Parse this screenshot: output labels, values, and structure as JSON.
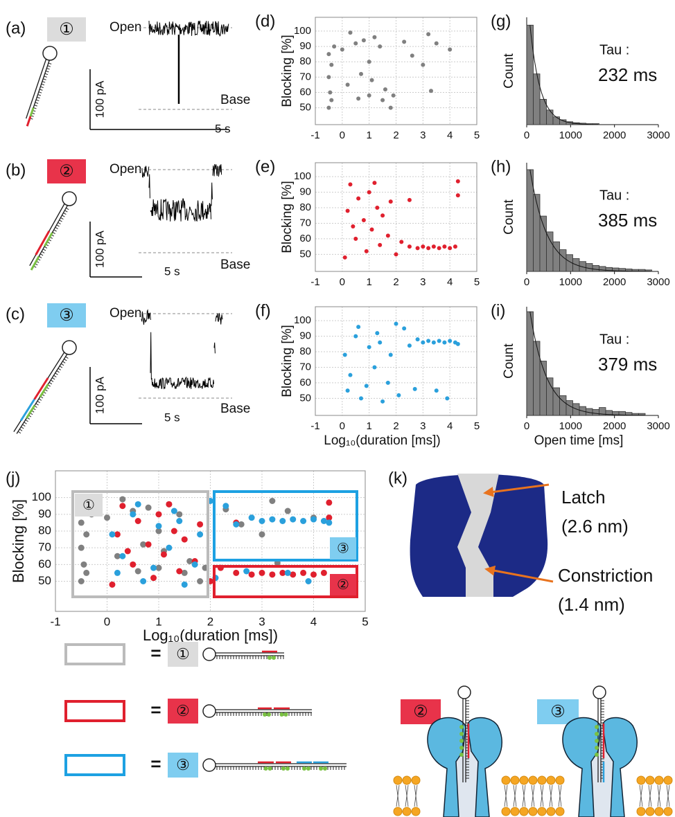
{
  "chart_data": [
    {
      "type": "scatter",
      "panel": "(d)",
      "ylabel": "Blocking [%]",
      "color": "#808080",
      "x": [
        -0.5,
        -0.5,
        -0.45,
        -0.4,
        -0.4,
        -0.3,
        0,
        0.2,
        0.3,
        0.5,
        0.6,
        0.8,
        1,
        1,
        1.1,
        1.2,
        1.4,
        1.5,
        1.6,
        1.8,
        1.9,
        2.3,
        2.6,
        3,
        3.2,
        3.3,
        3.5,
        4,
        -0.5,
        0.7
      ],
      "values": [
        85,
        70,
        60,
        78,
        55,
        90,
        88,
        65,
        99,
        92,
        56,
        94,
        80,
        58,
        68,
        96,
        90,
        55,
        62,
        50,
        58,
        93,
        84,
        78,
        98,
        61,
        92,
        88,
        50,
        72
      ],
      "xlim": [
        -1,
        5
      ],
      "ylim": [
        39,
        109
      ],
      "xticks": [
        -1,
        0,
        1,
        2,
        3,
        4,
        5
      ],
      "yticks": [
        50,
        60,
        70,
        80,
        90,
        100
      ],
      "grid": true
    },
    {
      "type": "scatter",
      "panel": "(e)",
      "ylabel": "Blocking [%]",
      "color": "#e0202e",
      "x": [
        0.1,
        0.2,
        0.3,
        0.5,
        0.6,
        0.8,
        0.9,
        1,
        1.1,
        1.3,
        1.4,
        1.5,
        1.7,
        1.8,
        2,
        2.2,
        2.5,
        2.8,
        3,
        3.2,
        3.4,
        3.6,
        3.8,
        4,
        4.2,
        4.3,
        4.3,
        2.5,
        1.2,
        0.4
      ],
      "values": [
        48,
        78,
        95,
        60,
        86,
        72,
        52,
        90,
        66,
        80,
        56,
        75,
        62,
        84,
        50,
        58,
        55,
        54,
        55,
        54,
        55,
        54,
        55,
        54,
        55,
        97,
        88,
        85,
        96,
        68
      ],
      "xlim": [
        -1,
        5
      ],
      "ylim": [
        39,
        109
      ],
      "xticks": [
        -1,
        0,
        1,
        2,
        3,
        4,
        5
      ],
      "yticks": [
        50,
        60,
        70,
        80,
        90,
        100
      ],
      "grid": true
    },
    {
      "type": "scatter",
      "panel": "(f)",
      "ylabel": "Blocking [%]",
      "xlabel": "Log₁₀(duration [ms])",
      "color": "#2aa0dc",
      "x": [
        0.1,
        0.2,
        0.3,
        0.5,
        0.7,
        0.9,
        1,
        1.2,
        1.3,
        1.5,
        1.7,
        1.8,
        2,
        2.1,
        2.3,
        2.5,
        2.8,
        3,
        3.2,
        3.4,
        3.6,
        3.8,
        4,
        4.2,
        4.3,
        3.5,
        3.9,
        1.4,
        0.6,
        2.7
      ],
      "values": [
        78,
        55,
        65,
        90,
        50,
        58,
        83,
        70,
        92,
        48,
        60,
        78,
        98,
        52,
        95,
        84,
        88,
        86,
        87,
        86,
        87,
        86,
        87,
        86,
        85,
        55,
        50,
        86,
        96,
        56
      ],
      "xlim": [
        -1,
        5
      ],
      "ylim": [
        39,
        109
      ],
      "xticks": [
        -1,
        0,
        1,
        2,
        3,
        4,
        5
      ],
      "yticks": [
        50,
        60,
        70,
        80,
        90,
        100
      ],
      "grid": true
    },
    {
      "type": "histogram",
      "panel": "(g)",
      "ylabel": "Count",
      "annotation": "Tau :",
      "tau": {
        "value": 232,
        "label": "232 ms"
      },
      "color": "#808080",
      "bins": [
        0,
        150,
        300,
        450,
        600,
        750,
        900,
        1050,
        1200,
        1350,
        1500,
        1650
      ],
      "counts": [
        102,
        52,
        26,
        15,
        8,
        5,
        3,
        2,
        1.5,
        1,
        1
      ],
      "xlim": [
        0,
        3000
      ],
      "ylim": [
        0,
        110
      ],
      "xticks": [
        0,
        1000,
        2000,
        3000
      ]
    },
    {
      "type": "histogram",
      "panel": "(h)",
      "ylabel": "Count",
      "annotation": "Tau :",
      "tau": {
        "value": 385,
        "label": "385 ms"
      },
      "color": "#808080",
      "bins": [
        0,
        150,
        300,
        450,
        600,
        750,
        900,
        1050,
        1200,
        1350,
        1500,
        1650,
        1800,
        1950,
        2100,
        2250,
        2400,
        2550,
        2700,
        2850
      ],
      "counts": [
        103,
        78,
        56,
        40,
        30,
        22,
        17,
        13,
        10,
        8,
        6,
        5,
        4,
        3.5,
        3,
        2.5,
        2,
        2,
        1.5
      ],
      "xlim": [
        0,
        3000
      ],
      "ylim": [
        0,
        110
      ],
      "xticks": [
        0,
        1000,
        2000,
        3000
      ]
    },
    {
      "type": "histogram",
      "panel": "(i)",
      "ylabel": "Count",
      "xlabel": "Open time [ms]",
      "annotation": "Tau :",
      "tau": {
        "value": 379,
        "label": "379 ms"
      },
      "color": "#808080",
      "bins": [
        0,
        150,
        300,
        450,
        600,
        750,
        900,
        1050,
        1200,
        1350,
        1500,
        1650,
        1800,
        1950,
        2100,
        2250,
        2400,
        2550,
        2700
      ],
      "counts": [
        105,
        75,
        55,
        38,
        28,
        20,
        15,
        12,
        9,
        7,
        6,
        8,
        5,
        4,
        4,
        3,
        2,
        2
      ],
      "xlim": [
        0,
        3000
      ],
      "ylim": [
        0,
        110
      ],
      "xticks": [
        0,
        1000,
        2000,
        3000
      ]
    },
    {
      "type": "scatter",
      "panel": "(j)",
      "ylabel": "Blocking [%]",
      "xlabel": "Log₁₀(duration [ms])",
      "series": [
        {
          "name": "①",
          "color": "#808080",
          "x": [
            -0.5,
            -0.5,
            -0.45,
            -0.4,
            -0.4,
            -0.3,
            0,
            0.2,
            0.3,
            0.5,
            0.6,
            0.8,
            1,
            1,
            1.1,
            1.2,
            1.4,
            1.5,
            1.6,
            1.8,
            1.9,
            2.3,
            2.6,
            3,
            3.2,
            3.3,
            3.5,
            4,
            -0.5,
            0.7
          ],
          "values": [
            85,
            70,
            60,
            78,
            55,
            90,
            88,
            65,
            99,
            92,
            56,
            94,
            80,
            58,
            68,
            96,
            90,
            55,
            62,
            50,
            58,
            93,
            84,
            78,
            98,
            61,
            92,
            88,
            50,
            72
          ]
        },
        {
          "name": "②",
          "color": "#e0202e",
          "x": [
            0.1,
            0.2,
            0.3,
            0.5,
            0.6,
            0.8,
            0.9,
            1,
            1.1,
            1.3,
            1.4,
            1.5,
            1.7,
            1.8,
            2,
            2.2,
            2.5,
            2.8,
            3,
            3.2,
            3.4,
            3.6,
            3.8,
            4,
            4.2,
            4.3,
            4.3,
            2.5,
            1.2,
            0.4
          ],
          "values": [
            48,
            78,
            95,
            60,
            86,
            72,
            52,
            90,
            66,
            80,
            56,
            75,
            62,
            84,
            50,
            58,
            55,
            54,
            55,
            54,
            55,
            54,
            55,
            54,
            55,
            97,
            88,
            85,
            96,
            68
          ]
        },
        {
          "name": "③",
          "color": "#2aa0dc",
          "x": [
            0.1,
            0.2,
            0.3,
            0.5,
            0.7,
            0.9,
            1,
            1.2,
            1.3,
            1.5,
            1.7,
            1.8,
            2,
            2.1,
            2.3,
            2.5,
            2.8,
            3,
            3.2,
            3.4,
            3.6,
            3.8,
            4,
            4.2,
            4.3,
            3.5,
            3.9,
            1.4,
            0.6,
            2.7
          ],
          "values": [
            78,
            55,
            65,
            90,
            50,
            58,
            83,
            70,
            92,
            48,
            60,
            78,
            98,
            52,
            95,
            84,
            88,
            86,
            87,
            86,
            87,
            86,
            87,
            86,
            85,
            55,
            50,
            86,
            96,
            56
          ]
        }
      ],
      "xlim": [
        -1,
        5
      ],
      "ylim": [
        32,
        116
      ],
      "xticks": [
        -1,
        0,
        1,
        2,
        3,
        4,
        5
      ],
      "yticks": [
        50,
        60,
        70,
        80,
        90,
        100
      ],
      "grid": true
    }
  ],
  "traces": [
    {
      "panel": "(a)",
      "open": "Open",
      "base": "Base",
      "current_scale": "100 pA",
      "time_scale": "5 s"
    },
    {
      "panel": "(b)",
      "open": "Open",
      "base": "Base",
      "current_scale": "100 pA",
      "time_scale": "5 s"
    },
    {
      "panel": "(c)",
      "open": "Open",
      "base": "Base",
      "current_scale": "100 pA",
      "time_scale": "5 s"
    }
  ],
  "structure": {
    "panel": "(k)",
    "latch": "Latch",
    "latch_size": "(2.6 nm)",
    "constriction": "Constriction",
    "constriction_size": "(1.4 nm)"
  },
  "legend_equals": "="
}
